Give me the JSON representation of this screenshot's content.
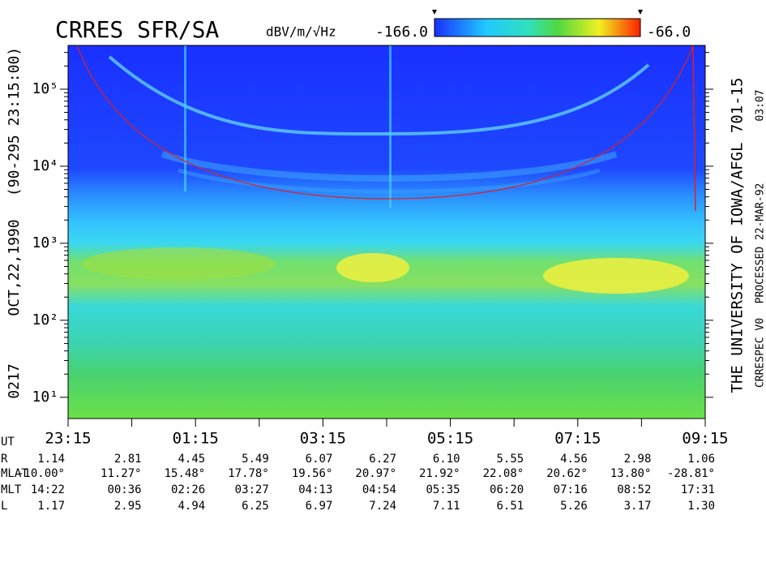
{
  "chart_data": {
    "type": "spectrogram",
    "title": "CRRES SFR/SA",
    "colorbar_label": "dBV/m/√Hz",
    "clim": [
      -166,
      -66
    ],
    "clim_ticks": [
      {
        "value": -166,
        "label": "-166.0"
      },
      {
        "value": -66,
        "label": "-66.0"
      }
    ],
    "ylog": true,
    "ylim": [
      5.3,
      370000
    ],
    "yticks": [
      {
        "value": 10,
        "label": "10¹"
      },
      {
        "value": 100,
        "label": "10²"
      },
      {
        "value": 1000,
        "label": "10³"
      },
      {
        "value": 10000,
        "label": "10⁴"
      },
      {
        "value": 100000,
        "label": "10⁵"
      }
    ],
    "xlim": [
      0,
      10
    ],
    "xticks": [
      {
        "value": 0,
        "label": "23:15"
      },
      {
        "value": 2,
        "label": "01:15"
      },
      {
        "value": 4,
        "label": "03:15"
      },
      {
        "value": 6,
        "label": "05:15"
      },
      {
        "value": 8,
        "label": "07:15"
      },
      {
        "value": 10,
        "label": "09:15"
      }
    ],
    "xminorticks": [
      1,
      3,
      5,
      7,
      9
    ],
    "left_labels": [
      "0217",
      "OCT,22,1990",
      "(90-295 23:15:00)"
    ],
    "right_labels": [
      "THE UNIVERSITY OF IOWA/AFGL 701-15",
      "CRRESPEC V0",
      "PROCESSED 22-MAR-92",
      "03:07"
    ],
    "ephemeris": {
      "ut_label": "UT",
      "rows": [
        {
          "label": "R",
          "values": [
            "1.14",
            "2.81",
            "4.45",
            "5.49",
            "6.07",
            "6.27",
            "6.10",
            "5.55",
            "4.56",
            "2.98",
            "1.06"
          ]
        },
        {
          "label": "MLAT",
          "values": [
            "-10.00°",
            "11.27°",
            "15.48°",
            "17.78°",
            "19.56°",
            "20.97°",
            "21.92°",
            "22.08°",
            "20.62°",
            "13.80°",
            "-28.81°"
          ]
        },
        {
          "label": "MLT",
          "values": [
            "14:22",
            "00:36",
            "02:26",
            "03:27",
            "04:13",
            "04:54",
            "05:35",
            "06:20",
            "07:16",
            "08:52",
            "17:31"
          ]
        },
        {
          "label": "L",
          "values": [
            "1.17",
            "2.95",
            "4.94",
            "6.25",
            "6.97",
            "7.24",
            "7.11",
            "6.51",
            "5.26",
            "3.17",
            "1.30"
          ]
        }
      ]
    }
  }
}
